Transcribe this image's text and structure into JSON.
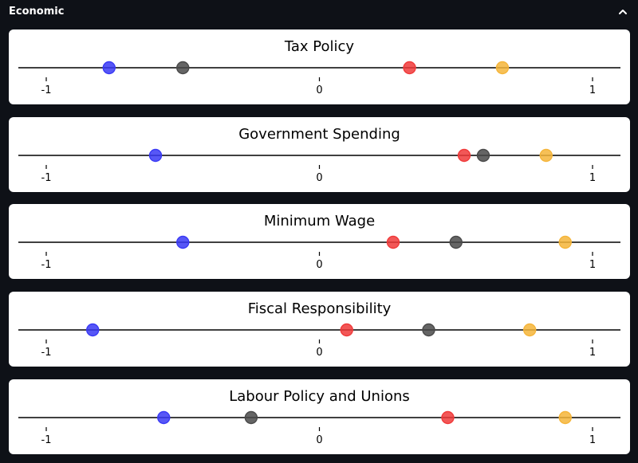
{
  "section": {
    "title": "Economic",
    "collapse_icon": "chevron-up-icon"
  },
  "colors": {
    "blue": "#3a3af5",
    "gray": "#4a4a4a",
    "red": "#f03a3a",
    "orange": "#f5b53a"
  },
  "chart_data": [
    {
      "type": "scatter",
      "title": "Tax Policy",
      "xlim": [
        -1.1,
        1.1
      ],
      "ticks": [
        -1,
        0,
        1
      ],
      "tick_labels": [
        "-1",
        "0",
        "1"
      ],
      "points": [
        {
          "color": "blue",
          "x": -0.77
        },
        {
          "color": "gray",
          "x": -0.5
        },
        {
          "color": "red",
          "x": 0.33
        },
        {
          "color": "orange",
          "x": 0.67
        }
      ]
    },
    {
      "type": "scatter",
      "title": "Government Spending",
      "xlim": [
        -1.1,
        1.1
      ],
      "ticks": [
        -1,
        0,
        1
      ],
      "tick_labels": [
        "-1",
        "0",
        "1"
      ],
      "points": [
        {
          "color": "blue",
          "x": -0.6
        },
        {
          "color": "red",
          "x": 0.53
        },
        {
          "color": "gray",
          "x": 0.6
        },
        {
          "color": "orange",
          "x": 0.83
        }
      ]
    },
    {
      "type": "scatter",
      "title": "Minimum Wage",
      "xlim": [
        -1.1,
        1.1
      ],
      "ticks": [
        -1,
        0,
        1
      ],
      "tick_labels": [
        "-1",
        "0",
        "1"
      ],
      "points": [
        {
          "color": "blue",
          "x": -0.5
        },
        {
          "color": "red",
          "x": 0.27
        },
        {
          "color": "gray",
          "x": 0.5
        },
        {
          "color": "orange",
          "x": 0.9
        }
      ]
    },
    {
      "type": "scatter",
      "title": "Fiscal Responsibility",
      "xlim": [
        -1.1,
        1.1
      ],
      "ticks": [
        -1,
        0,
        1
      ],
      "tick_labels": [
        "-1",
        "0",
        "1"
      ],
      "points": [
        {
          "color": "blue",
          "x": -0.83
        },
        {
          "color": "red",
          "x": 0.1
        },
        {
          "color": "gray",
          "x": 0.4
        },
        {
          "color": "orange",
          "x": 0.77
        }
      ]
    },
    {
      "type": "scatter",
      "title": "Labour Policy and Unions",
      "xlim": [
        -1.1,
        1.1
      ],
      "ticks": [
        -1,
        0,
        1
      ],
      "tick_labels": [
        "-1",
        "0",
        "1"
      ],
      "points": [
        {
          "color": "blue",
          "x": -0.57
        },
        {
          "color": "gray",
          "x": -0.25
        },
        {
          "color": "red",
          "x": 0.47
        },
        {
          "color": "orange",
          "x": 0.9
        }
      ]
    }
  ]
}
